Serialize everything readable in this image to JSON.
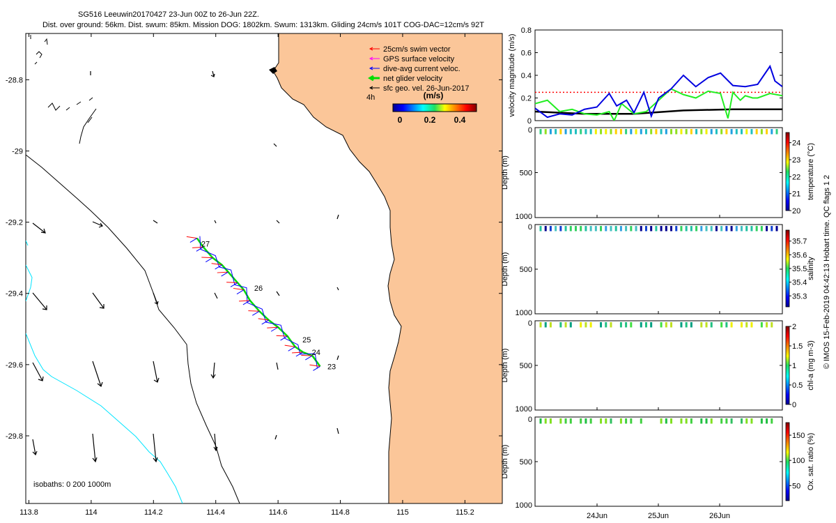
{
  "header": {
    "title_line1": "SG516 Leeuwin20170427 23-Jun 00Z to 26-Jun 22Z.",
    "title_line2": "Dist. over ground: 56km. Dist. swum: 85km. Mission DOG: 1802km. Swum: 1313km. Gliding 24cm/s 101T COG-DAC=12cm/s 92T"
  },
  "colors": {
    "land": "#FBC699",
    "coast": "#000000",
    "isobath_shallow": "#00E5FF",
    "isobath_deep": "#000000",
    "swim": "#FF0000",
    "gps": "#FF00FF",
    "dac": "#0000FF",
    "net": "#00DD00",
    "geo": "#000000",
    "vel_blue": "#0000E0",
    "vel_green": "#22EE22",
    "vel_black": "#000000",
    "vel_ref": "#FF0000"
  },
  "map": {
    "legend": {
      "swim": "25cm/s swim vector",
      "gps": "GPS surface velocity",
      "dac": "dive-avg current veloc.",
      "net": "net glider velocity",
      "geo": "sfc geo. vel. 26-Jun-2017",
      "scale_label": "4h",
      "colorbar_label": "(m/s)",
      "colorbar_ticks": [
        "0",
        "0.2",
        "0.4"
      ]
    },
    "isobaths_label": "isobaths: 0   200  1000m",
    "day_labels": [
      "27",
      "26",
      "25",
      "24",
      "23"
    ]
  },
  "chart_data": [
    {
      "type": "map",
      "name": "glider track",
      "xlabel": "longitude",
      "ylabel": "latitude",
      "xlim": [
        113.79,
        115.32
      ],
      "ylim": [
        -29.99,
        -28.67
      ],
      "xticks": [
        "113.8",
        "114",
        "114.2",
        "114.4",
        "114.6",
        "114.8",
        "115",
        "115.2"
      ],
      "xtick_values": [
        113.8,
        114.0,
        114.2,
        114.4,
        114.6,
        114.8,
        115.0,
        115.2
      ],
      "yticks": [
        "-28.8",
        "-29",
        "-29.2",
        "-29.4",
        "-29.6",
        "-29.8"
      ],
      "ytick_values": [
        -28.8,
        -29.0,
        -29.2,
        -29.4,
        -29.6,
        -29.8
      ],
      "track_lon": [
        114.735,
        114.71,
        114.68,
        114.655,
        114.63,
        114.6,
        114.57,
        114.54,
        114.51,
        114.49,
        114.47,
        114.44,
        114.42,
        114.39,
        114.36,
        114.34
      ],
      "track_lat": [
        -29.605,
        -29.575,
        -29.565,
        -29.55,
        -29.52,
        -29.495,
        -29.475,
        -29.45,
        -29.42,
        -29.39,
        -29.37,
        -29.34,
        -29.32,
        -29.3,
        -29.27,
        -29.245
      ],
      "day_label_positions": [
        {
          "label": "27",
          "lon": 114.34,
          "lat": -29.26
        },
        {
          "label": "26",
          "lon": 114.51,
          "lat": -29.385
        },
        {
          "label": "25",
          "lon": 114.665,
          "lat": -29.53
        },
        {
          "label": "24",
          "lon": 114.695,
          "lat": -29.565
        },
        {
          "label": "23",
          "lon": 114.745,
          "lat": -29.605
        }
      ]
    },
    {
      "type": "line",
      "name": "velocity magnitude",
      "ylabel": "velocity magnitude (m/s)",
      "xlim": [
        0,
        1
      ],
      "ylim": [
        0,
        0.8
      ],
      "yticks": [
        "0",
        "0.2",
        "0.4",
        "0.6",
        "0.8"
      ],
      "ytick_values": [
        0,
        0.2,
        0.4,
        0.6,
        0.8
      ],
      "reference_value": 0.25,
      "series": [
        {
          "name": "blue",
          "x": [
            0.0,
            0.05,
            0.1,
            0.15,
            0.2,
            0.25,
            0.3,
            0.33,
            0.37,
            0.4,
            0.44,
            0.47,
            0.5,
            0.55,
            0.6,
            0.65,
            0.7,
            0.75,
            0.8,
            0.85,
            0.9,
            0.95,
            0.97,
            1.0
          ],
          "values": [
            0.11,
            0.03,
            0.06,
            0.05,
            0.1,
            0.12,
            0.24,
            0.13,
            0.18,
            0.07,
            0.25,
            0.04,
            0.2,
            0.28,
            0.4,
            0.3,
            0.38,
            0.42,
            0.31,
            0.3,
            0.32,
            0.48,
            0.35,
            0.3
          ]
        },
        {
          "name": "green",
          "x": [
            0.0,
            0.05,
            0.1,
            0.15,
            0.2,
            0.25,
            0.3,
            0.32,
            0.35,
            0.4,
            0.45,
            0.5,
            0.55,
            0.6,
            0.65,
            0.7,
            0.75,
            0.78,
            0.8,
            0.83,
            0.85,
            0.88,
            0.9,
            0.95,
            1.0
          ],
          "values": [
            0.15,
            0.18,
            0.08,
            0.1,
            0.06,
            0.05,
            0.08,
            0.0,
            0.15,
            0.06,
            0.08,
            0.18,
            0.28,
            0.23,
            0.2,
            0.26,
            0.24,
            0.02,
            0.25,
            0.18,
            0.22,
            0.2,
            0.2,
            0.24,
            0.22
          ]
        },
        {
          "name": "black",
          "x": [
            0.0,
            0.2,
            0.4,
            0.6,
            0.8,
            1.0
          ],
          "values": [
            0.08,
            0.06,
            0.06,
            0.09,
            0.1,
            0.1
          ]
        }
      ]
    },
    {
      "type": "scatter",
      "name": "temperature",
      "ylabel": "Depth (m)",
      "colorbar_label": "temperature (°C)",
      "ylim": [
        1000,
        0
      ],
      "yticks": [
        "0",
        "500",
        "1000"
      ],
      "colorbar_ticks": [
        "20",
        "21",
        "22",
        "23",
        "24"
      ],
      "clim": [
        20,
        24.6
      ]
    },
    {
      "type": "scatter",
      "name": "salinity",
      "ylabel": "Depth (m)",
      "colorbar_label": "salinity",
      "ylim": [
        1000,
        0
      ],
      "yticks": [
        "0",
        "500",
        "1000"
      ],
      "colorbar_ticks": [
        "35.3",
        "35.4",
        "35.5",
        "35.6",
        "35.7"
      ],
      "clim": [
        35.22,
        35.78
      ]
    },
    {
      "type": "scatter",
      "name": "chlorophyll",
      "ylabel": "Depth (m)",
      "colorbar_label": "chl-a (mg m-3)",
      "ylim": [
        1000,
        0
      ],
      "yticks": [
        "0",
        "500",
        "1000"
      ],
      "colorbar_ticks": [
        "0",
        "0.5",
        "1",
        "1.5",
        "2"
      ],
      "clim": [
        0,
        2
      ]
    },
    {
      "type": "scatter",
      "name": "oxygen saturation",
      "ylabel": "Depth (m)",
      "colorbar_label": "Ox. sat. ratio (%)",
      "ylim": [
        1000,
        0
      ],
      "yticks": [
        "0",
        "500",
        "1000"
      ],
      "xticks": [
        "24Jun",
        "25Jun",
        "26Jun"
      ],
      "colorbar_ticks": [
        "50",
        "100",
        "150"
      ],
      "clim": [
        20,
        175
      ]
    }
  ],
  "side_text": "© IMOS 15-Feb-2019 04:42:13 Hobart time. QC flags 1  2"
}
